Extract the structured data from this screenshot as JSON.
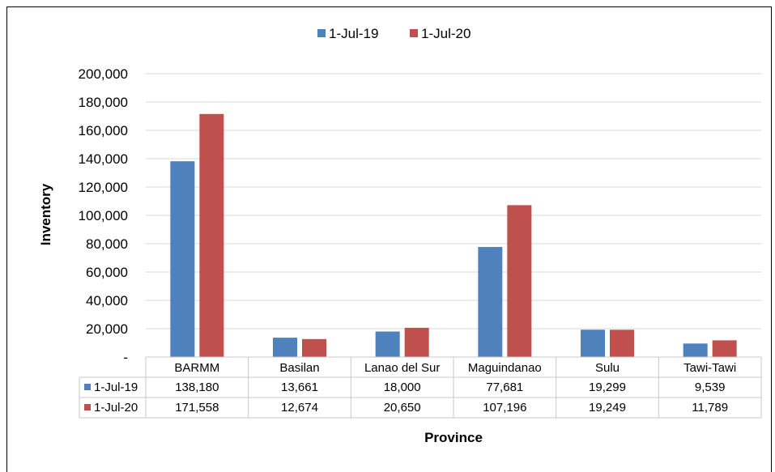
{
  "page": {
    "title_fragment": ""
  },
  "chart_data": {
    "type": "bar",
    "categories": [
      "BARMM",
      "Basilan",
      "Lanao del Sur",
      "Maguindanao",
      "Sulu",
      "Tawi-Tawi"
    ],
    "series": [
      {
        "name": "1-Jul-19",
        "color": "#4F81BD",
        "values": [
          138180,
          13661,
          18000,
          77681,
          19299,
          9539
        ]
      },
      {
        "name": "1-Jul-20",
        "color": "#C0504D",
        "values": [
          171558,
          12674,
          20650,
          107196,
          19249,
          11789
        ]
      }
    ],
    "xlabel": "Province",
    "ylabel": "Inventory",
    "ylim": [
      0,
      200000
    ],
    "yticks": [
      0,
      20000,
      40000,
      60000,
      80000,
      100000,
      120000,
      140000,
      160000,
      180000,
      200000
    ],
    "ytick_labels": [
      "-",
      "20,000",
      "40,000",
      "60,000",
      "80,000",
      "100,000",
      "120,000",
      "140,000",
      "160,000",
      "180,000",
      "200,000"
    ],
    "grid": true,
    "legend_position": "top-center",
    "data_table": {
      "rows": [
        {
          "label": "1-Jul-19",
          "cells": [
            "138,180",
            "13,661",
            "18,000",
            "77,681",
            "19,299",
            "9,539"
          ]
        },
        {
          "label": "1-Jul-20",
          "cells": [
            "171,558",
            "12,674",
            "20,650",
            "107,196",
            "19,249",
            "11,789"
          ]
        }
      ]
    }
  }
}
